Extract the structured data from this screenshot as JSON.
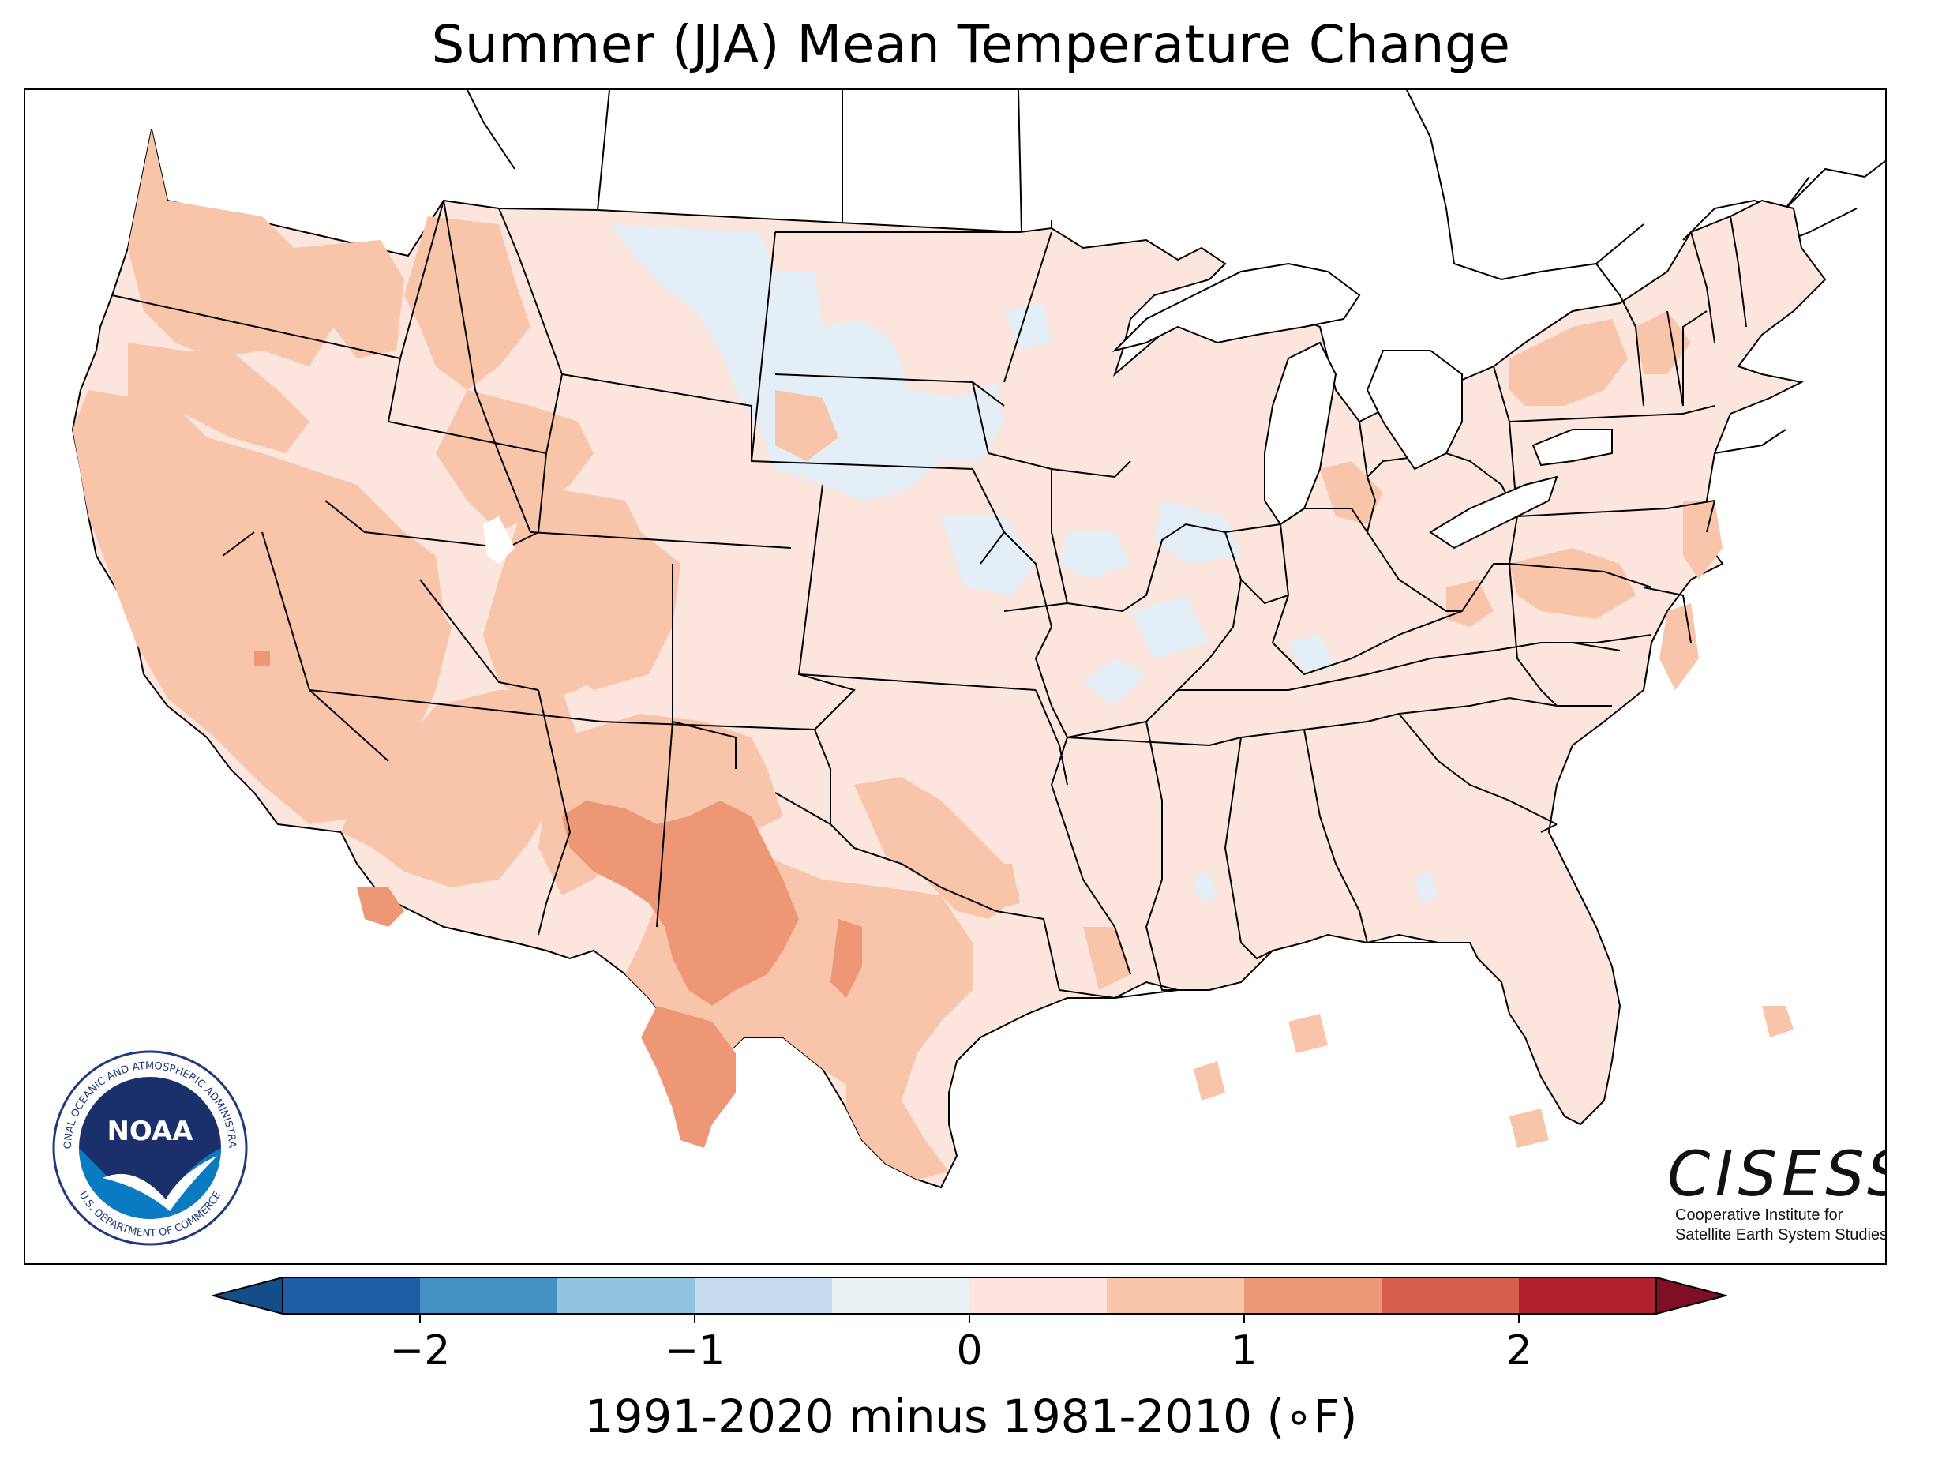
{
  "title": "Summer (JJA) Mean Temperature Change",
  "colorbar": {
    "units_label": "1991-2020 minus 1981-2010 (∘F)",
    "ticks": [
      {
        "value": -2,
        "label": "−2"
      },
      {
        "value": -1,
        "label": "−1"
      },
      {
        "value": 0,
        "label": "0"
      },
      {
        "value": 1,
        "label": "1"
      },
      {
        "value": 2,
        "label": "2"
      }
    ],
    "min": -2.5,
    "max": 2.5,
    "step": 0.5,
    "colors": [
      "#1f5da6",
      "#4392c3",
      "#90c3de",
      "#c5ddee",
      "#e9f1f5",
      "#fbe5dc",
      "#f8c4aa",
      "#ee9776",
      "#d6604d",
      "#b21f2d"
    ],
    "under_color": "#144e8a",
    "over_color": "#800e26"
  },
  "legend_colors": {
    "neg_small": "#e3eef7",
    "pos_small": "#fbe5dc",
    "pos_mid": "#f8c4aa",
    "pos_high": "#ee9776"
  },
  "logos": {
    "noaa_text": "NOAA",
    "noaa_ring_top": "NATIONAL OCEANIC AND ATMOSPHERIC ADMINISTRATION",
    "noaa_ring_bottom": "U.S. DEPARTMENT OF COMMERCE",
    "cisess_name": "CISESS",
    "cisess_line1": "Cooperative Institute for",
    "cisess_line2": "Satellite Earth System Studies"
  }
}
